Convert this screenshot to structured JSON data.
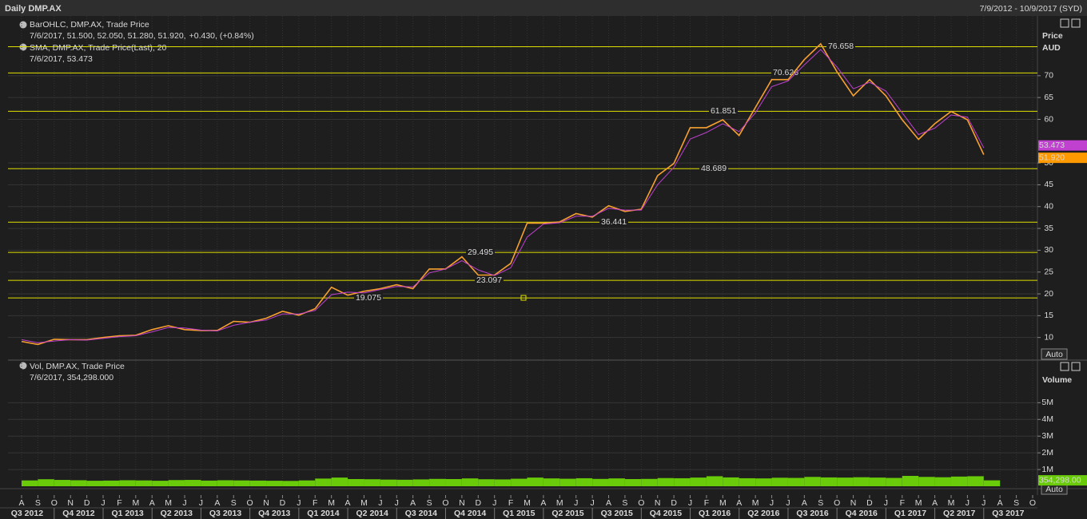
{
  "header": {
    "title": "Daily DMP.AX",
    "range": "7/9/2012 - 10/9/2017 (SYD)"
  },
  "chart_data": [
    {
      "type": "line",
      "y_label": "Price",
      "y_unit": "AUD",
      "categories": [
        "A",
        "S",
        "O",
        "N",
        "D",
        "J",
        "F",
        "M",
        "A",
        "M",
        "J",
        "J",
        "A",
        "S",
        "O",
        "N",
        "D",
        "J",
        "F",
        "M",
        "A",
        "M",
        "J",
        "J",
        "A",
        "S",
        "O",
        "N",
        "D",
        "J",
        "F",
        "M",
        "A",
        "M",
        "J",
        "J",
        "A",
        "S",
        "O",
        "N",
        "D",
        "J",
        "F",
        "M",
        "A",
        "M",
        "J",
        "J",
        "A",
        "S",
        "O",
        "N",
        "D",
        "J",
        "F",
        "M",
        "A",
        "M",
        "J",
        "J",
        "A",
        "S",
        "O"
      ],
      "quarters": [
        "Q3 2012",
        "Q4 2012",
        "Q1 2013",
        "Q2 2013",
        "Q3 2013",
        "Q4 2013",
        "Q1 2014",
        "Q2 2014",
        "Q3 2014",
        "Q4 2014",
        "Q1 2015",
        "Q2 2015",
        "Q3 2015",
        "Q4 2015",
        "Q1 2016",
        "Q2 2016",
        "Q3 2016",
        "Q4 2016",
        "Q1 2017",
        "Q2 2017",
        "Q3 2017"
      ],
      "series": [
        {
          "name": "BarOHLC, DMP.AX, Trade Price",
          "info": "7/6/2017, 51.500, 52.050, 51.280, 51.920,",
          "change": "+0.430, (+0.84%)",
          "color": "#f7a030",
          "values": [
            9.1,
            8.4,
            9.6,
            9.5,
            9.5,
            10,
            10.4,
            10.5,
            11.8,
            12.7,
            11.8,
            11.6,
            11.6,
            13.7,
            13.5,
            14.4,
            16,
            15.1,
            16.6,
            21.5,
            19.7,
            20.6,
            21.2,
            22.1,
            21.2,
            25.7,
            25.7,
            28.5,
            24.3,
            24.3,
            27,
            36.2,
            36.2,
            36.5,
            38.4,
            37.6,
            40.2,
            38.9,
            39.4,
            47.1,
            49.9,
            58.1,
            58.1,
            59.9,
            56.3,
            62.7,
            69.1,
            69.1,
            73.7,
            77.3,
            70.9,
            65.4,
            69.1,
            65.4,
            59.9,
            55.4,
            59,
            61.8,
            59.9,
            51.92,
            null,
            null,
            null
          ],
          "last": {
            "value": 51.92,
            "label": "51.920"
          }
        },
        {
          "name": "SMA, DMP.AX, Trade Price(Last), 20",
          "info": "7/6/2017, 53.473",
          "color": "#c040d0",
          "values": [
            9.5,
            8.8,
            9.2,
            9.5,
            9.4,
            9.8,
            10.2,
            10.4,
            11.3,
            12.3,
            12.2,
            11.7,
            11.5,
            12.8,
            13.5,
            14,
            15.4,
            15.4,
            16.2,
            19.8,
            20.4,
            20.2,
            21,
            21.7,
            21.6,
            24.8,
            25.7,
            27.6,
            25.5,
            24.2,
            26,
            33,
            36,
            36.3,
            37.8,
            37.8,
            39.6,
            39.2,
            39.2,
            45,
            49,
            55.5,
            57,
            59,
            57.2,
            61.5,
            67.5,
            68.8,
            72.5,
            76,
            72,
            67,
            68.5,
            66.5,
            61.5,
            56.5,
            58,
            61,
            60.5,
            53.473,
            null,
            null,
            null
          ],
          "last": 53.473
        }
      ],
      "levels": [
        76.658,
        70.626,
        61.851,
        48.689,
        36.441,
        29.495,
        23.097,
        19.075
      ],
      "level_color": "#e0e000",
      "ylim": [
        5,
        80.4
      ],
      "yticks": [
        10,
        15,
        20,
        25,
        30,
        35,
        40,
        45,
        50,
        60,
        65,
        70
      ],
      "grid": true,
      "scale_button": "Auto"
    },
    {
      "type": "bar",
      "y_label": "Volume",
      "series": [
        {
          "name": "Vol, DMP.AX, Trade Price",
          "info": "7/6/2017, 354,298.000",
          "color": "#6acb0a",
          "values": [
            350000,
            420000,
            380000,
            360000,
            330000,
            340000,
            360000,
            350000,
            330000,
            370000,
            380000,
            340000,
            360000,
            350000,
            340000,
            330000,
            320000,
            350000,
            460000,
            520000,
            430000,
            420000,
            400000,
            390000,
            410000,
            440000,
            430000,
            470000,
            420000,
            410000,
            450000,
            520000,
            470000,
            450000,
            480000,
            440000,
            470000,
            430000,
            440000,
            490000,
            480000,
            520000,
            600000,
            530000,
            480000,
            470000,
            510000,
            500000,
            560000,
            530000,
            520000,
            540000,
            520000,
            500000,
            620000,
            560000,
            540000,
            580000,
            600000,
            354298,
            null,
            null,
            null
          ],
          "last": {
            "value": 354298,
            "label": "354,298.00"
          }
        }
      ],
      "ylim": [
        0,
        7500000
      ],
      "yticks": [
        {
          "value": 1000000,
          "label": "1M"
        },
        {
          "value": 2000000,
          "label": "2M"
        },
        {
          "value": 3000000,
          "label": "3M"
        },
        {
          "value": 4000000,
          "label": "4M"
        },
        {
          "value": 5000000,
          "label": "5M"
        }
      ],
      "grid": true,
      "scale_button": "Auto"
    }
  ]
}
